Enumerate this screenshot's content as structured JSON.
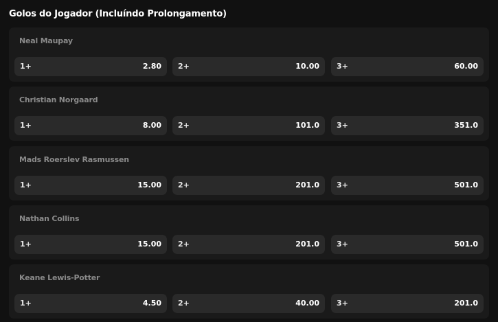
{
  "market": {
    "title": "Golos do Jogador (Incluíndo Prolongamento)"
  },
  "players": [
    {
      "name": "Neal Maupay",
      "odds": [
        {
          "label": "1+",
          "value": "2.80"
        },
        {
          "label": "2+",
          "value": "10.00"
        },
        {
          "label": "3+",
          "value": "60.00"
        }
      ]
    },
    {
      "name": "Christian Norgaard",
      "odds": [
        {
          "label": "1+",
          "value": "8.00"
        },
        {
          "label": "2+",
          "value": "101.0"
        },
        {
          "label": "3+",
          "value": "351.0"
        }
      ]
    },
    {
      "name": "Mads Roerslev Rasmussen",
      "odds": [
        {
          "label": "1+",
          "value": "15.00"
        },
        {
          "label": "2+",
          "value": "201.0"
        },
        {
          "label": "3+",
          "value": "501.0"
        }
      ]
    },
    {
      "name": "Nathan Collins",
      "odds": [
        {
          "label": "1+",
          "value": "15.00"
        },
        {
          "label": "2+",
          "value": "201.0"
        },
        {
          "label": "3+",
          "value": "501.0"
        }
      ]
    },
    {
      "name": "Keane Lewis-Potter",
      "odds": [
        {
          "label": "1+",
          "value": "4.50"
        },
        {
          "label": "2+",
          "value": "40.00"
        },
        {
          "label": "3+",
          "value": "201.0"
        }
      ]
    }
  ],
  "colors": {
    "background": "#111111",
    "card": "#1a1a1a",
    "button": "#2a2a2a",
    "player_name": "#8a8a8a",
    "text": "#ffffff"
  }
}
